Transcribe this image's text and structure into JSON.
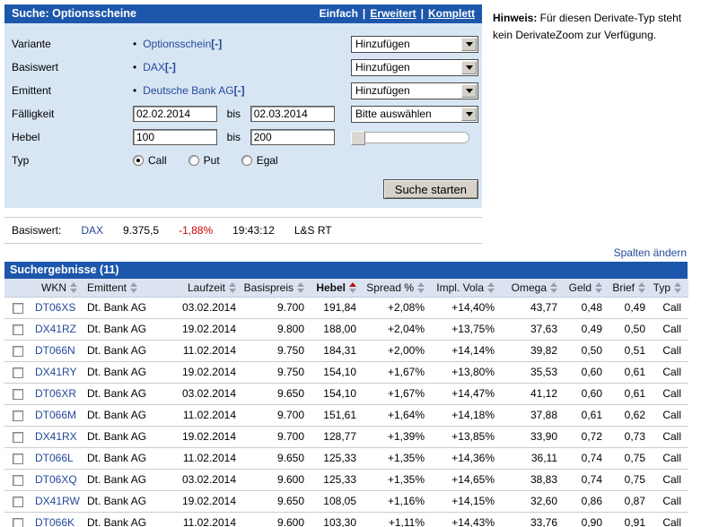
{
  "search_panel": {
    "title": "Suche: Optionsscheine",
    "modes": {
      "einfach": "Einfach",
      "erweitert": "Erweitert",
      "komplett": "Komplett"
    },
    "rows": [
      {
        "label": "Variante",
        "value": "Optionsschein",
        "remove": "[-]",
        "action": "Hinzufügen"
      },
      {
        "label": "Basiswert",
        "value": "DAX",
        "remove": "[-]",
        "action": "Hinzufügen"
      },
      {
        "label": "Emittent",
        "value": "Deutsche Bank AG",
        "remove": "[-]",
        "action": "Hinzufügen"
      }
    ],
    "faelligkeit": {
      "label": "Fälligkeit",
      "from": "02.02.2014",
      "bis_label": "bis",
      "to": "02.03.2014",
      "select": "Bitte auswählen"
    },
    "hebel": {
      "label": "Hebel",
      "from": "100",
      "bis_label": "bis",
      "to": "200"
    },
    "typ": {
      "label": "Typ",
      "options": [
        {
          "label": "Call",
          "checked": true
        },
        {
          "label": "Put",
          "checked": false
        },
        {
          "label": "Egal",
          "checked": false
        }
      ]
    },
    "submit_label": "Suche starten"
  },
  "hint": {
    "bold": "Hinweis:",
    "text": " Für diesen Derivate-Typ steht kein DerivateZoom zur Verfügung."
  },
  "ticker": {
    "label": "Basiswert:",
    "symbol": "DAX",
    "price": "9.375,5",
    "change": "-1,88%",
    "time": "19:43:12",
    "source": "L&S RT"
  },
  "spalten_aendern": "Spalten ändern",
  "results": {
    "title": "Suchergebnisse (11)",
    "columns": [
      "WKN",
      "Emittent",
      "Laufzeit",
      "Basispreis",
      "Hebel",
      "Spread %",
      "Impl. Vola",
      "Omega",
      "Geld",
      "Brief",
      "Typ"
    ],
    "sorted_column": "Hebel",
    "sort_direction": "desc",
    "rows": [
      [
        "DT06XS",
        "Dt. Bank AG",
        "03.02.2014",
        "9.700",
        "191,84",
        "+2,08%",
        "+14,40%",
        "43,77",
        "0,48",
        "0,49",
        "Call"
      ],
      [
        "DX41RZ",
        "Dt. Bank AG",
        "19.02.2014",
        "9.800",
        "188,00",
        "+2,04%",
        "+13,75%",
        "37,63",
        "0,49",
        "0,50",
        "Call"
      ],
      [
        "DT066N",
        "Dt. Bank AG",
        "11.02.2014",
        "9.750",
        "184,31",
        "+2,00%",
        "+14,14%",
        "39,82",
        "0,50",
        "0,51",
        "Call"
      ],
      [
        "DX41RY",
        "Dt. Bank AG",
        "19.02.2014",
        "9.750",
        "154,10",
        "+1,67%",
        "+13,80%",
        "35,53",
        "0,60",
        "0,61",
        "Call"
      ],
      [
        "DT06XR",
        "Dt. Bank AG",
        "03.02.2014",
        "9.650",
        "154,10",
        "+1,67%",
        "+14,47%",
        "41,12",
        "0,60",
        "0,61",
        "Call"
      ],
      [
        "DT066M",
        "Dt. Bank AG",
        "11.02.2014",
        "9.700",
        "151,61",
        "+1,64%",
        "+14,18%",
        "37,88",
        "0,61",
        "0,62",
        "Call"
      ],
      [
        "DX41RX",
        "Dt. Bank AG",
        "19.02.2014",
        "9.700",
        "128,77",
        "+1,39%",
        "+13,85%",
        "33,90",
        "0,72",
        "0,73",
        "Call"
      ],
      [
        "DT066L",
        "Dt. Bank AG",
        "11.02.2014",
        "9.650",
        "125,33",
        "+1,35%",
        "+14,36%",
        "36,11",
        "0,74",
        "0,75",
        "Call"
      ],
      [
        "DT06XQ",
        "Dt. Bank AG",
        "03.02.2014",
        "9.600",
        "125,33",
        "+1,35%",
        "+14,65%",
        "38,83",
        "0,74",
        "0,75",
        "Call"
      ],
      [
        "DX41RW",
        "Dt. Bank AG",
        "19.02.2014",
        "9.650",
        "108,05",
        "+1,16%",
        "+14,15%",
        "32,60",
        "0,86",
        "0,87",
        "Call"
      ],
      [
        "DT066K",
        "Dt. Bank AG",
        "11.02.2014",
        "9.600",
        "103,30",
        "+1,11%",
        "+14,43%",
        "33,76",
        "0,90",
        "0,91",
        "Call"
      ]
    ]
  },
  "colors": {
    "bar_blue": "#1d57ac",
    "panel_bg": "#d8e6f4",
    "header_row_bg": "#dbe3f1",
    "link": "#24499a",
    "negative_red": "#cc0000"
  }
}
